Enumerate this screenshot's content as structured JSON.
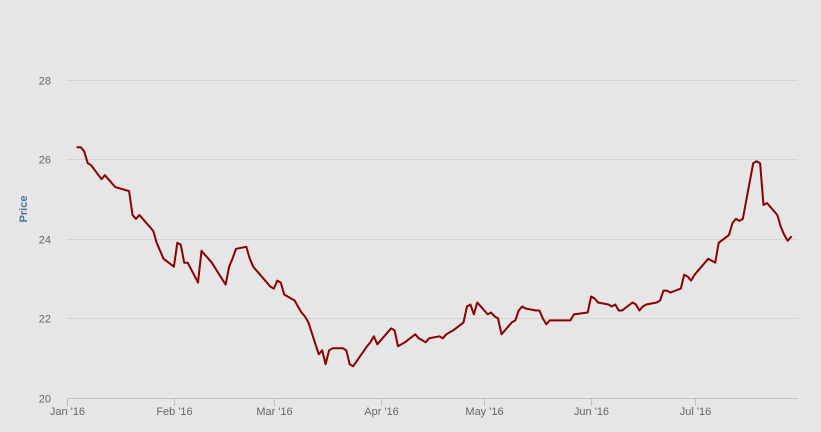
{
  "chart_data": {
    "type": "line",
    "title": "",
    "xlabel": "",
    "ylabel": "Price",
    "ylim": [
      20,
      29.5
    ],
    "x_range": [
      "2016-01-01",
      "2016-07-31"
    ],
    "y_ticks": [
      20,
      22,
      24,
      26,
      28
    ],
    "x_ticks": [
      {
        "date": "2016-01-01",
        "label": "Jan '16"
      },
      {
        "date": "2016-02-01",
        "label": "Feb '16"
      },
      {
        "date": "2016-03-01",
        "label": "Mar '16"
      },
      {
        "date": "2016-04-01",
        "label": "Apr '16"
      },
      {
        "date": "2016-05-01",
        "label": "May '16"
      },
      {
        "date": "2016-06-01",
        "label": "Jun '16"
      },
      {
        "date": "2016-07-01",
        "label": "Jul '16"
      }
    ],
    "grid": true,
    "legend": "none",
    "colors": {
      "background": "#e6e6e6",
      "line": "#8b0000",
      "grid": "#d3d3d3",
      "axis_title": "#4d759e",
      "tick_label": "#666666"
    },
    "series": [
      {
        "data": [
          [
            "2016-01-04",
            26.3
          ],
          [
            "2016-01-05",
            26.3
          ],
          [
            "2016-01-06",
            26.2
          ],
          [
            "2016-01-07",
            25.9
          ],
          [
            "2016-01-08",
            25.85
          ],
          [
            "2016-01-11",
            25.5
          ],
          [
            "2016-01-12",
            25.6
          ],
          [
            "2016-01-13",
            25.5
          ],
          [
            "2016-01-14",
            25.4
          ],
          [
            "2016-01-15",
            25.3
          ],
          [
            "2016-01-19",
            25.2
          ],
          [
            "2016-01-20",
            24.6
          ],
          [
            "2016-01-21",
            24.5
          ],
          [
            "2016-01-22",
            24.6
          ],
          [
            "2016-01-25",
            24.3
          ],
          [
            "2016-01-26",
            24.2
          ],
          [
            "2016-01-27",
            23.9
          ],
          [
            "2016-01-28",
            23.7
          ],
          [
            "2016-01-29",
            23.5
          ],
          [
            "2016-02-01",
            23.3
          ],
          [
            "2016-02-02",
            23.9
          ],
          [
            "2016-02-03",
            23.85
          ],
          [
            "2016-02-04",
            23.4
          ],
          [
            "2016-02-05",
            23.4
          ],
          [
            "2016-02-08",
            22.9
          ],
          [
            "2016-02-09",
            23.7
          ],
          [
            "2016-02-10",
            23.6
          ],
          [
            "2016-02-11",
            23.5
          ],
          [
            "2016-02-12",
            23.4
          ],
          [
            "2016-02-16",
            22.85
          ],
          [
            "2016-02-17",
            23.3
          ],
          [
            "2016-02-18",
            23.5
          ],
          [
            "2016-02-19",
            23.75
          ],
          [
            "2016-02-22",
            23.8
          ],
          [
            "2016-02-23",
            23.5
          ],
          [
            "2016-02-24",
            23.3
          ],
          [
            "2016-02-25",
            23.2
          ],
          [
            "2016-02-26",
            23.1
          ],
          [
            "2016-02-29",
            22.8
          ],
          [
            "2016-03-01",
            22.75
          ],
          [
            "2016-03-02",
            22.95
          ],
          [
            "2016-03-03",
            22.9
          ],
          [
            "2016-03-04",
            22.6
          ],
          [
            "2016-03-07",
            22.45
          ],
          [
            "2016-03-08",
            22.3
          ],
          [
            "2016-03-09",
            22.15
          ],
          [
            "2016-03-10",
            22.05
          ],
          [
            "2016-03-11",
            21.9
          ],
          [
            "2016-03-14",
            21.1
          ],
          [
            "2016-03-15",
            21.2
          ],
          [
            "2016-03-16",
            20.85
          ],
          [
            "2016-03-17",
            21.2
          ],
          [
            "2016-03-18",
            21.25
          ],
          [
            "2016-03-21",
            21.25
          ],
          [
            "2016-03-22",
            21.2
          ],
          [
            "2016-03-23",
            20.85
          ],
          [
            "2016-03-24",
            20.8
          ],
          [
            "2016-03-28",
            21.3
          ],
          [
            "2016-03-29",
            21.4
          ],
          [
            "2016-03-30",
            21.55
          ],
          [
            "2016-03-31",
            21.35
          ],
          [
            "2016-04-01",
            21.45
          ],
          [
            "2016-04-04",
            21.75
          ],
          [
            "2016-04-05",
            21.7
          ],
          [
            "2016-04-06",
            21.3
          ],
          [
            "2016-04-07",
            21.35
          ],
          [
            "2016-04-08",
            21.4
          ],
          [
            "2016-04-11",
            21.6
          ],
          [
            "2016-04-12",
            21.5
          ],
          [
            "2016-04-13",
            21.45
          ],
          [
            "2016-04-14",
            21.4
          ],
          [
            "2016-04-15",
            21.5
          ],
          [
            "2016-04-18",
            21.55
          ],
          [
            "2016-04-19",
            21.5
          ],
          [
            "2016-04-20",
            21.6
          ],
          [
            "2016-04-21",
            21.65
          ],
          [
            "2016-04-22",
            21.7
          ],
          [
            "2016-04-25",
            21.9
          ],
          [
            "2016-04-26",
            22.3
          ],
          [
            "2016-04-27",
            22.35
          ],
          [
            "2016-04-28",
            22.1
          ],
          [
            "2016-04-29",
            22.4
          ],
          [
            "2016-05-02",
            22.1
          ],
          [
            "2016-05-03",
            22.15
          ],
          [
            "2016-05-04",
            22.05
          ],
          [
            "2016-05-05",
            22.0
          ],
          [
            "2016-05-06",
            21.6
          ],
          [
            "2016-05-09",
            21.9
          ],
          [
            "2016-05-10",
            21.95
          ],
          [
            "2016-05-11",
            22.2
          ],
          [
            "2016-05-12",
            22.3
          ],
          [
            "2016-05-13",
            22.25
          ],
          [
            "2016-05-16",
            22.2
          ],
          [
            "2016-05-17",
            22.2
          ],
          [
            "2016-05-18",
            22.0
          ],
          [
            "2016-05-19",
            21.85
          ],
          [
            "2016-05-20",
            21.95
          ],
          [
            "2016-05-23",
            21.95
          ],
          [
            "2016-05-24",
            21.95
          ],
          [
            "2016-05-25",
            21.95
          ],
          [
            "2016-05-26",
            21.95
          ],
          [
            "2016-05-27",
            22.1
          ],
          [
            "2016-05-31",
            22.15
          ],
          [
            "2016-06-01",
            22.55
          ],
          [
            "2016-06-02",
            22.5
          ],
          [
            "2016-06-03",
            22.4
          ],
          [
            "2016-06-06",
            22.35
          ],
          [
            "2016-06-07",
            22.3
          ],
          [
            "2016-06-08",
            22.35
          ],
          [
            "2016-06-09",
            22.2
          ],
          [
            "2016-06-10",
            22.2
          ],
          [
            "2016-06-13",
            22.4
          ],
          [
            "2016-06-14",
            22.35
          ],
          [
            "2016-06-15",
            22.2
          ],
          [
            "2016-06-16",
            22.3
          ],
          [
            "2016-06-17",
            22.35
          ],
          [
            "2016-06-20",
            22.4
          ],
          [
            "2016-06-21",
            22.45
          ],
          [
            "2016-06-22",
            22.7
          ],
          [
            "2016-06-23",
            22.7
          ],
          [
            "2016-06-24",
            22.65
          ],
          [
            "2016-06-27",
            22.75
          ],
          [
            "2016-06-28",
            23.1
          ],
          [
            "2016-06-29",
            23.05
          ],
          [
            "2016-06-30",
            22.95
          ],
          [
            "2016-07-01",
            23.1
          ],
          [
            "2016-07-05",
            23.5
          ],
          [
            "2016-07-06",
            23.45
          ],
          [
            "2016-07-07",
            23.4
          ],
          [
            "2016-07-08",
            23.9
          ],
          [
            "2016-07-11",
            24.1
          ],
          [
            "2016-07-12",
            24.4
          ],
          [
            "2016-07-13",
            24.5
          ],
          [
            "2016-07-14",
            24.45
          ],
          [
            "2016-07-15",
            24.5
          ],
          [
            "2016-07-18",
            25.9
          ],
          [
            "2016-07-19",
            25.95
          ],
          [
            "2016-07-20",
            25.9
          ],
          [
            "2016-07-21",
            24.85
          ],
          [
            "2016-07-22",
            24.9
          ],
          [
            "2016-07-25",
            24.6
          ],
          [
            "2016-07-26",
            24.3
          ],
          [
            "2016-07-27",
            24.1
          ],
          [
            "2016-07-28",
            23.95
          ],
          [
            "2016-07-29",
            24.05
          ]
        ]
      }
    ]
  }
}
